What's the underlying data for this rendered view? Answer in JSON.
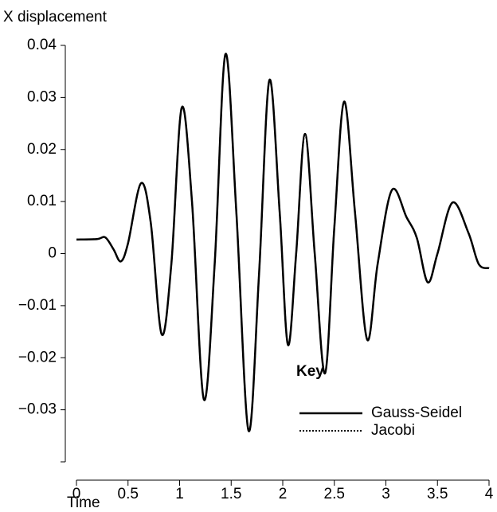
{
  "chart_data": {
    "type": "line",
    "y_label": "X displacement",
    "x_label": "Time",
    "legend_title": "Key",
    "x": [
      0,
      0.2,
      0.28,
      0.36,
      0.43,
      0.5,
      0.625,
      0.72,
      0.826,
      0.92,
      1.02,
      1.12,
      1.235,
      1.34,
      1.444,
      1.55,
      1.668,
      1.77,
      1.87,
      1.97,
      2.05,
      2.13,
      2.216,
      2.31,
      2.41,
      2.5,
      2.595,
      2.7,
      2.818,
      2.92,
      3.058,
      3.2,
      3.3,
      3.405,
      3.5,
      3.645,
      3.8,
      3.9,
      4.0
    ],
    "series": [
      {
        "name": "Gauss-Seidel",
        "color": "#000000",
        "dash": "solid",
        "values": [
          0.0027,
          0.0028,
          0.0031,
          0.0008,
          -0.0015,
          0.002,
          0.0135,
          0.006,
          -0.0155,
          -0.002,
          0.028,
          0.01,
          -0.028,
          -0.002,
          0.0383,
          0.008,
          -0.034,
          -0.004,
          0.0333,
          0.008,
          -0.0175,
          0.0,
          0.023,
          0.0,
          -0.023,
          0.005,
          0.0292,
          0.008,
          -0.0165,
          -0.002,
          0.0122,
          0.007,
          0.003,
          -0.0055,
          0.0,
          0.0098,
          0.004,
          -0.002,
          -0.0028
        ]
      },
      {
        "name": "Jacobi",
        "color": "#000000",
        "dash": "dotted",
        "values": [
          0.0027,
          0.0028,
          0.0031,
          0.0008,
          -0.0015,
          0.002,
          0.0135,
          0.006,
          -0.0155,
          -0.002,
          0.028,
          0.01,
          -0.028,
          -0.002,
          0.0383,
          0.008,
          -0.034,
          -0.004,
          0.0333,
          0.008,
          -0.0175,
          0.0,
          0.023,
          0.0,
          -0.023,
          0.005,
          0.0292,
          0.008,
          -0.0165,
          -0.002,
          0.0122,
          0.007,
          0.003,
          -0.0055,
          0.0,
          0.0098,
          0.004,
          -0.002,
          -0.0028
        ]
      }
    ],
    "xlim": [
      0,
      4
    ],
    "xticks": [
      0,
      0.5,
      1,
      1.5,
      2,
      2.5,
      3,
      3.5,
      4
    ],
    "ylim": [
      -0.04,
      0.04
    ],
    "yticks": [
      0.04,
      0.03,
      0.02,
      0.01,
      0,
      {
        "value": -0.01,
        "label": "−0.01"
      },
      {
        "value": -0.02,
        "label": "−0.02"
      },
      {
        "value": -0.03,
        "label": "−0.03"
      }
    ],
    "grid": false,
    "legend_position": "lower right"
  }
}
